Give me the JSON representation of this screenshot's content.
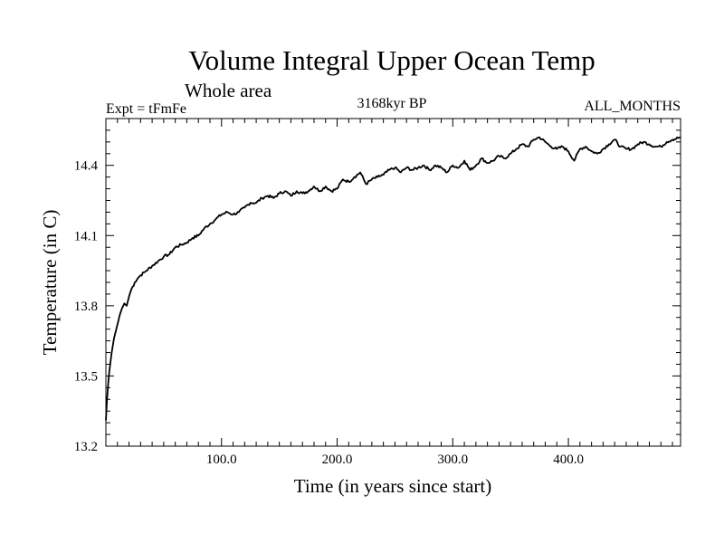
{
  "chart_data": {
    "type": "line",
    "title": "Volume Integral Upper Ocean Temp",
    "subtitle": "Whole area",
    "annotations": {
      "left": "Expt = tFmFe",
      "center": "3168kyr BP",
      "right": "ALL_MONTHS"
    },
    "xlabel": "Time (in years since start)",
    "ylabel": "Temperature (in C)",
    "xlim": [
      0,
      497
    ],
    "ylim": [
      13.2,
      14.6
    ],
    "x_ticks": [
      100,
      200,
      300,
      400
    ],
    "x_tick_labels": [
      "100.0",
      "200.0",
      "300.0",
      "400.0"
    ],
    "y_ticks": [
      13.2,
      13.5,
      13.8,
      14.1,
      14.4
    ],
    "y_tick_labels": [
      "13.2",
      "13.5",
      "13.8",
      "14.1",
      "14.4"
    ],
    "series": [
      {
        "name": "Volume integral upper ocean temperature",
        "x": [
          0,
          1,
          2,
          3,
          4,
          5,
          6,
          7,
          8,
          10,
          12,
          14,
          16,
          18,
          20,
          22,
          25,
          28,
          30,
          35,
          40,
          45,
          50,
          55,
          60,
          65,
          70,
          75,
          80,
          85,
          90,
          95,
          100,
          105,
          110,
          115,
          120,
          125,
          130,
          135,
          140,
          145,
          150,
          155,
          160,
          165,
          170,
          175,
          180,
          185,
          190,
          195,
          200,
          205,
          210,
          215,
          220,
          225,
          230,
          235,
          240,
          245,
          250,
          255,
          260,
          265,
          270,
          275,
          280,
          285,
          290,
          295,
          300,
          305,
          310,
          315,
          320,
          325,
          330,
          335,
          340,
          345,
          350,
          355,
          360,
          365,
          370,
          375,
          380,
          385,
          390,
          395,
          400,
          405,
          410,
          415,
          420,
          425,
          430,
          435,
          440,
          445,
          450,
          455,
          460,
          465,
          470,
          475,
          480,
          485,
          490,
          497
        ],
        "values": [
          13.31,
          13.4,
          13.47,
          13.52,
          13.56,
          13.6,
          13.63,
          13.66,
          13.68,
          13.72,
          13.76,
          13.79,
          13.81,
          13.8,
          13.84,
          13.87,
          13.9,
          13.92,
          13.93,
          13.95,
          13.97,
          13.99,
          14.01,
          14.02,
          14.05,
          14.06,
          14.07,
          14.09,
          14.1,
          14.13,
          14.15,
          14.17,
          14.19,
          14.2,
          14.19,
          14.2,
          14.22,
          14.24,
          14.24,
          14.26,
          14.27,
          14.26,
          14.28,
          14.29,
          14.27,
          14.29,
          14.28,
          14.29,
          14.31,
          14.29,
          14.31,
          14.29,
          14.3,
          14.34,
          14.33,
          14.35,
          14.37,
          14.32,
          14.34,
          14.35,
          14.36,
          14.38,
          14.39,
          14.37,
          14.39,
          14.38,
          14.39,
          14.4,
          14.38,
          14.4,
          14.39,
          14.37,
          14.4,
          14.39,
          14.42,
          14.38,
          14.4,
          14.43,
          14.41,
          14.42,
          14.44,
          14.43,
          14.45,
          14.47,
          14.49,
          14.48,
          14.51,
          14.52,
          14.5,
          14.48,
          14.47,
          14.48,
          14.46,
          14.42,
          14.47,
          14.48,
          14.46,
          14.45,
          14.47,
          14.49,
          14.51,
          14.48,
          14.47,
          14.47,
          14.49,
          14.5,
          14.49,
          14.48,
          14.48,
          14.5,
          14.51,
          14.52
        ]
      }
    ]
  }
}
